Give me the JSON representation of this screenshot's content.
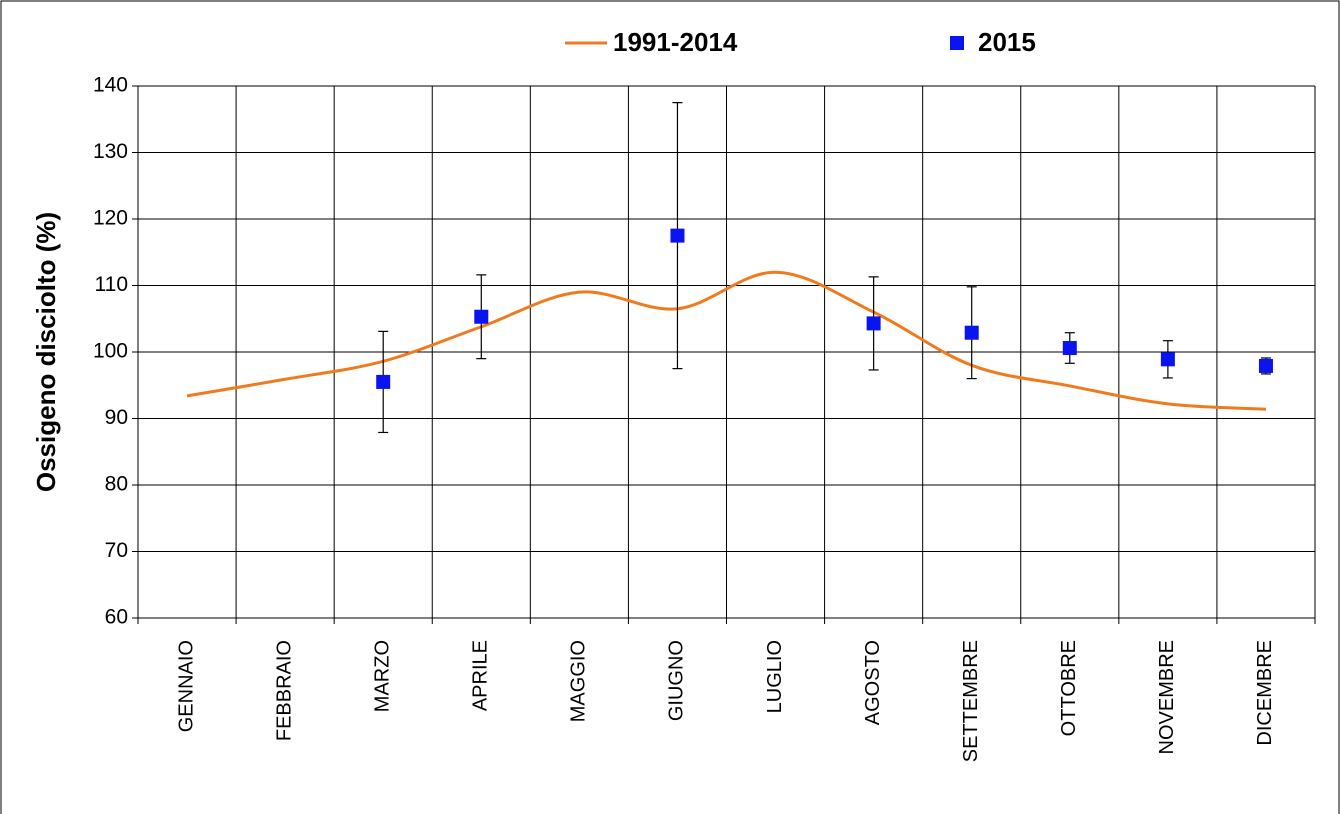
{
  "chart_data": {
    "type": "line",
    "y_label": "Ossigeno disciolto (%)",
    "categories": [
      "GENNAIO",
      "FEBBRAIO",
      "MARZO",
      "APRILE",
      "MAGGIO",
      "GIUGNO",
      "LUGLIO",
      "AGOSTO",
      "SETTEMBRE",
      "OTTOBRE",
      "NOVEMBRE",
      "DICEMBRE"
    ],
    "series": [
      {
        "name": "1991-2014",
        "kind": "line",
        "color": "#f07a1e",
        "values": [
          93.4,
          95.9,
          98.6,
          103.8,
          109.0,
          106.5,
          112.0,
          106.0,
          98.0,
          94.9,
          92.2,
          91.4
        ]
      },
      {
        "name": "2015",
        "kind": "marker",
        "color": "#0a14f0",
        "values": [
          null,
          null,
          95.5,
          105.3,
          null,
          117.5,
          null,
          104.3,
          102.9,
          100.6,
          98.9,
          97.9
        ],
        "errors": [
          null,
          null,
          7.6,
          6.3,
          null,
          20.0,
          null,
          7.0,
          6.9,
          2.3,
          2.8,
          1.2
        ]
      }
    ],
    "ylim": [
      60,
      140
    ],
    "yticks": [
      60,
      70,
      80,
      90,
      100,
      110,
      120,
      130,
      140
    ],
    "grid": true
  }
}
